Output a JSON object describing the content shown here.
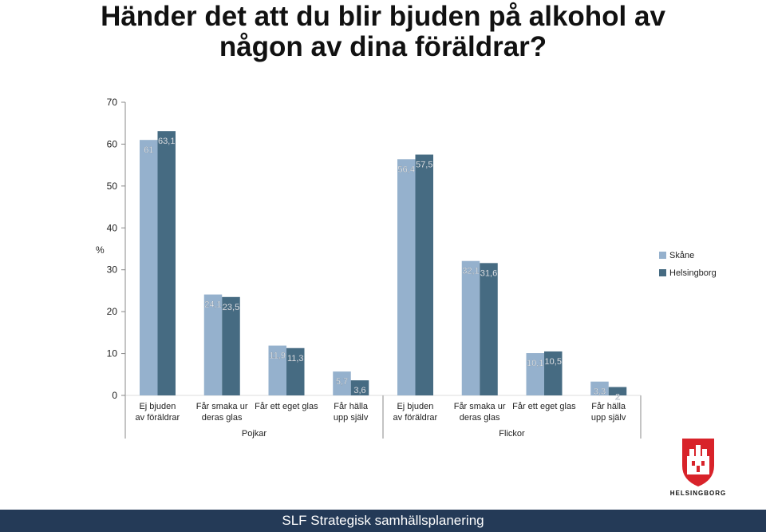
{
  "title": {
    "line1": "Händer det att du blir bjuden på alkohol av",
    "line2": "någon av dina föräldrar?"
  },
  "footer": {
    "text": "SLF Strategisk samhällsplanering"
  },
  "logo": {
    "text": "HELSINGBORG"
  },
  "chart_data": {
    "type": "bar",
    "ylabel": "%",
    "ylim": [
      0,
      70
    ],
    "yticks": [
      0,
      10,
      20,
      30,
      40,
      50,
      60,
      70
    ],
    "grid": false,
    "legend_position": "right",
    "categories": [
      "Ej bjuden av föräldrar",
      "Får smaka ur deras glas",
      "Får ett eget glas",
      "Får hälla upp själv",
      "Ej bjuden av föräldrar",
      "Får smaka ur deras glas",
      "Får ett eget glas",
      "Får hälla upp själv"
    ],
    "groups": [
      {
        "label": "Pojkar",
        "categories": [
          0,
          1,
          2,
          3
        ]
      },
      {
        "label": "Flickor",
        "categories": [
          4,
          5,
          6,
          7
        ]
      }
    ],
    "series": [
      {
        "name": "Skåne",
        "color": "#95b1cd",
        "values": [
          61,
          24.1,
          11.9,
          5.7,
          56.4,
          32.1,
          10.1,
          3.3
        ],
        "labels": [
          "61",
          "24,1",
          "11,9",
          "5,7",
          "56,4",
          "32,1",
          "10,1",
          "3,3"
        ]
      },
      {
        "name": "Helsingborg",
        "color": "#466b82",
        "values": [
          63.1,
          23.5,
          11.3,
          3.6,
          57.5,
          31.6,
          10.5,
          2
        ],
        "labels": [
          "63,1",
          "23,5",
          "11,3",
          "3,6",
          "57,5",
          "31,6",
          "10,5",
          "2"
        ]
      }
    ]
  }
}
